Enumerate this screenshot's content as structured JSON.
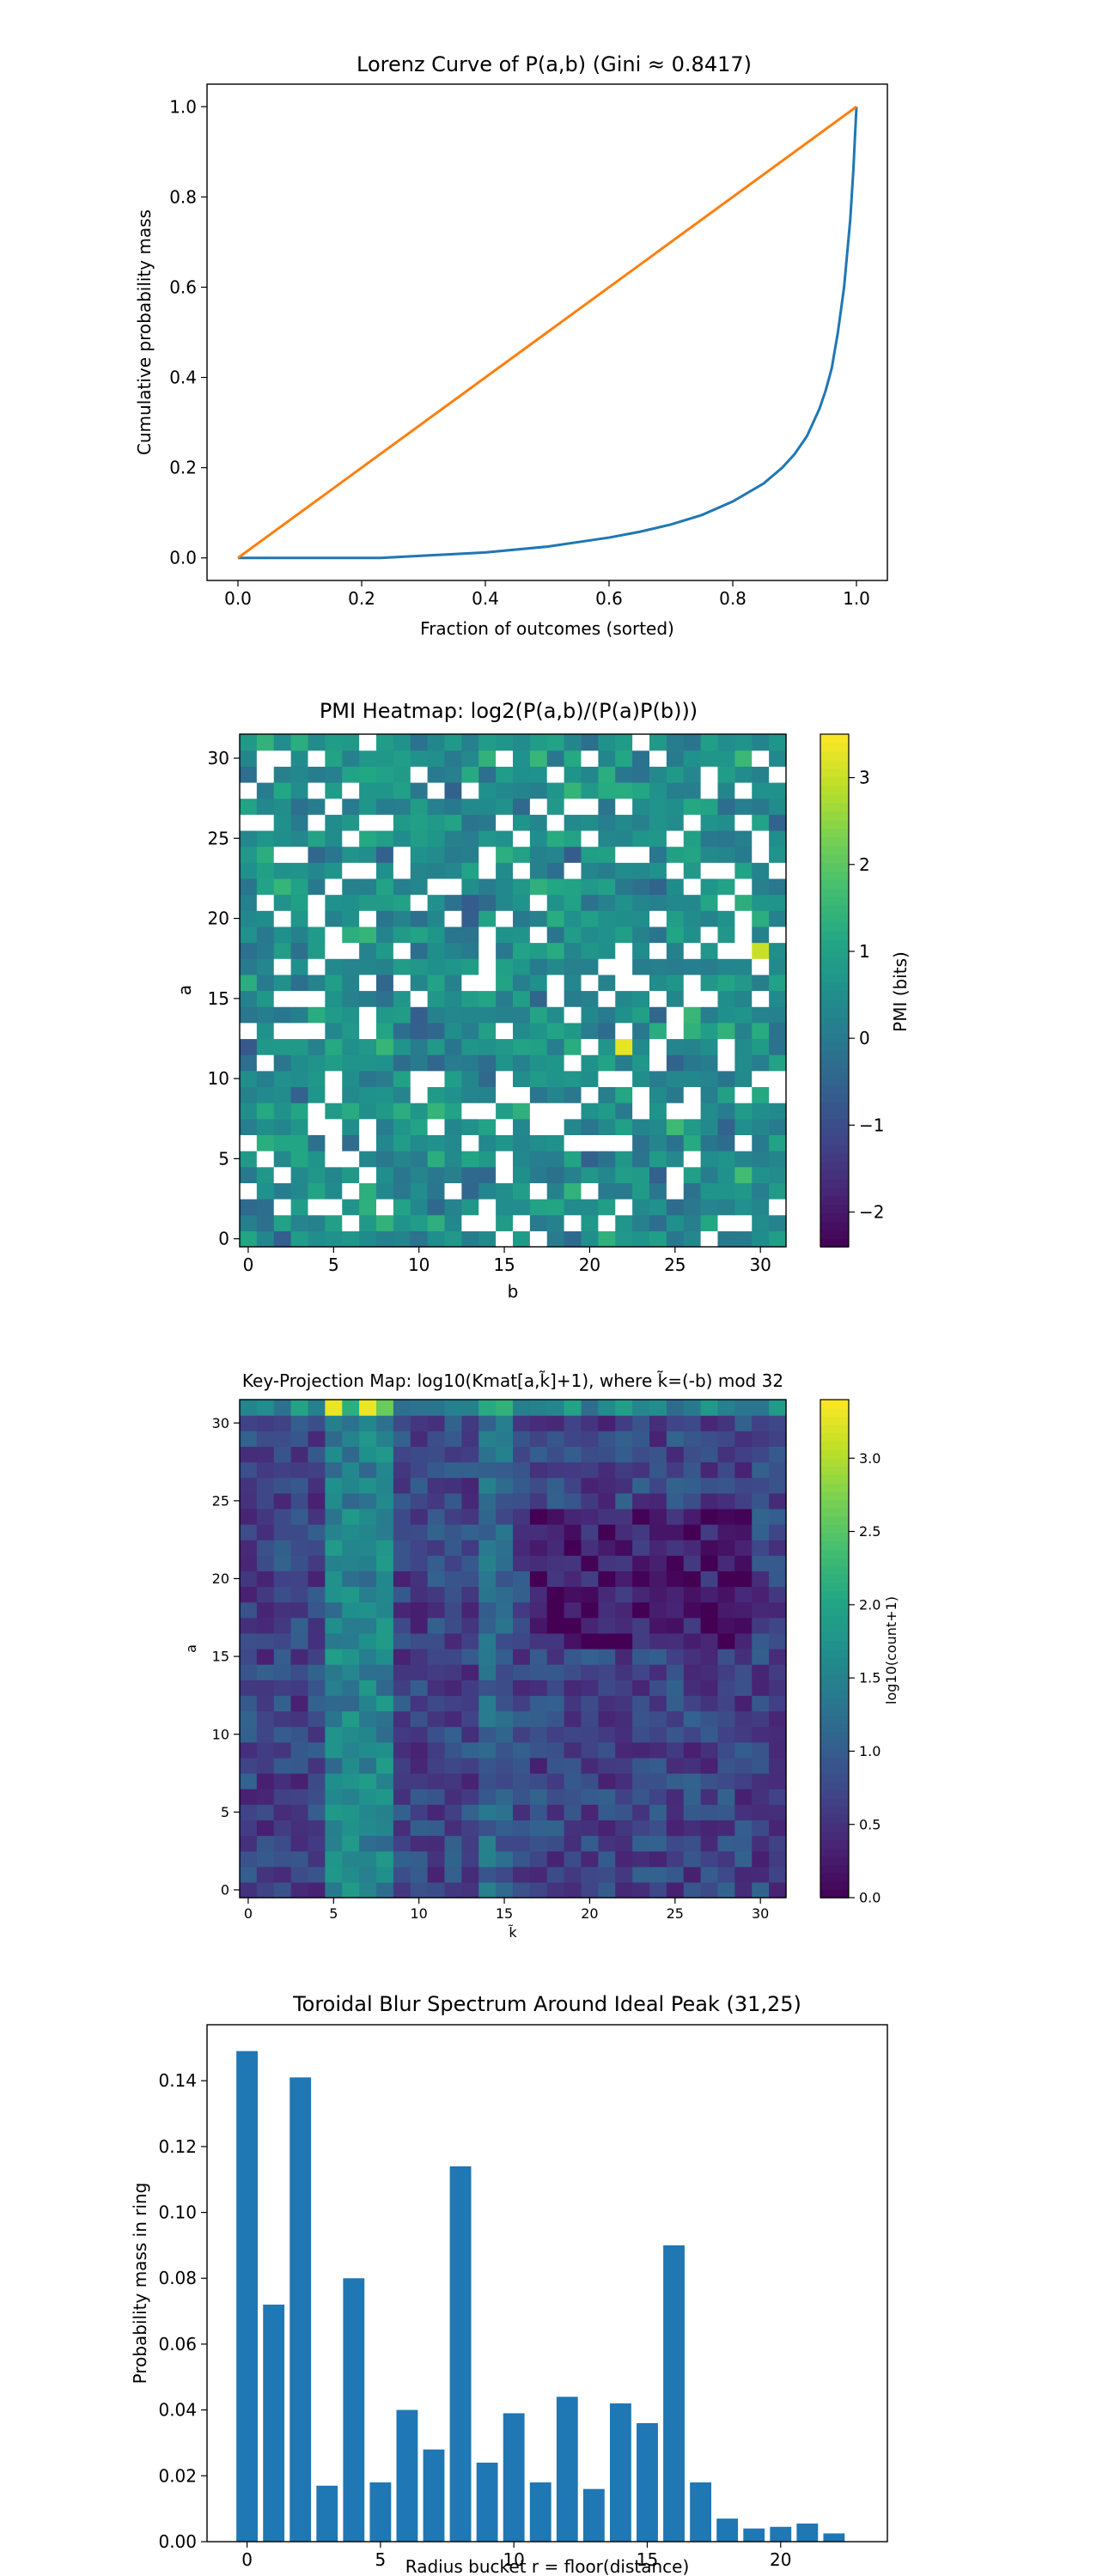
{
  "chart_data": [
    {
      "type": "line",
      "title": "Lorenz Curve of P(a,b) (Gini ≈ 0.8417)",
      "xlabel": "Fraction of outcomes (sorted)",
      "ylabel": "Cumulative probability mass",
      "xlim": [
        -0.05,
        1.05
      ],
      "ylim": [
        -0.05,
        1.05
      ],
      "xticks": [
        0.0,
        0.2,
        0.4,
        0.6,
        0.8,
        1.0
      ],
      "yticks": [
        0.0,
        0.2,
        0.4,
        0.6,
        0.8,
        1.0
      ],
      "tick_labels": [
        "0.0",
        "0.2",
        "0.4",
        "0.6",
        "0.8",
        "1.0"
      ],
      "grid": false,
      "series": [
        {
          "color": "#1f77b4",
          "x": [
            0.0,
            0.23,
            0.3,
            0.4,
            0.5,
            0.6,
            0.65,
            0.7,
            0.75,
            0.8,
            0.85,
            0.88,
            0.9,
            0.92,
            0.94,
            0.95,
            0.96,
            0.97,
            0.98,
            0.99,
            0.995,
            1.0
          ],
          "y": [
            0.0,
            0.0,
            0.005,
            0.012,
            0.025,
            0.045,
            0.058,
            0.074,
            0.095,
            0.125,
            0.165,
            0.2,
            0.23,
            0.27,
            0.33,
            0.37,
            0.42,
            0.5,
            0.6,
            0.75,
            0.86,
            1.0
          ]
        },
        {
          "color": "#ff7f0e",
          "x": [
            0.0,
            1.0
          ],
          "y": [
            0.0,
            1.0
          ]
        }
      ]
    },
    {
      "type": "heatmap",
      "title": "PMI Heatmap: log2(P(a,b)/(P(a)P(b)))",
      "xlabel": "b",
      "ylabel": "a",
      "xticks": [
        0,
        5,
        10,
        15,
        20,
        25,
        30
      ],
      "yticks": [
        0,
        5,
        10,
        15,
        20,
        25,
        30
      ],
      "grid_size": 32,
      "colorscale": "viridis",
      "colorbar_label": "PMI (bits)",
      "colorbar_range": [
        -2.4,
        3.5
      ],
      "colorbar_ticks": [
        -2,
        -1,
        0,
        1,
        2,
        3
      ],
      "colorbar_tick_labels": [
        "−2",
        "−1",
        "0",
        "1",
        "2",
        "3"
      ],
      "missing_cells_shown_as": "white",
      "seed": 7
    },
    {
      "type": "heatmap",
      "title": "Key-Projection Map: log10(Kmat[a,k̃]+1), where k̃=(-b) mod 32",
      "xlabel": "k̃",
      "ylabel": "a",
      "xticks": [
        0,
        5,
        10,
        15,
        20,
        25,
        30
      ],
      "yticks": [
        0,
        5,
        10,
        15,
        20,
        25,
        30
      ],
      "grid_size": 32,
      "colorscale": "viridis",
      "colorbar_label": "log10(count+1)",
      "colorbar_range": [
        0.0,
        3.4
      ],
      "colorbar_ticks": [
        0.0,
        0.5,
        1.0,
        1.5,
        2.0,
        2.5,
        3.0
      ],
      "colorbar_tick_labels": [
        "0.0",
        "0.5",
        "1.0",
        "1.5",
        "2.0",
        "2.5",
        "3.0"
      ],
      "seed": 13
    },
    {
      "type": "bar",
      "title": "Toroidal Blur Spectrum Around Ideal Peak (31,25)",
      "xlabel": "Radius bucket r = floor(distance)",
      "ylabel": "Probability mass in ring",
      "categories": [
        0,
        1,
        2,
        3,
        4,
        5,
        6,
        7,
        8,
        9,
        10,
        11,
        12,
        13,
        14,
        15,
        16,
        17,
        18,
        19,
        20,
        21,
        22
      ],
      "values": [
        0.149,
        0.072,
        0.141,
        0.017,
        0.08,
        0.018,
        0.04,
        0.028,
        0.114,
        0.024,
        0.039,
        0.018,
        0.044,
        0.016,
        0.042,
        0.036,
        0.09,
        0.018,
        0.007,
        0.004,
        0.0045,
        0.0055,
        0.0025
      ],
      "xlim": [
        -1.5,
        24
      ],
      "ylim": [
        0,
        0.157
      ],
      "xticks": [
        0,
        5,
        10,
        15,
        20
      ],
      "yticks": [
        0.0,
        0.02,
        0.04,
        0.06,
        0.08,
        0.1,
        0.12,
        0.14
      ],
      "ytick_labels": [
        "0.00",
        "0.02",
        "0.04",
        "0.06",
        "0.08",
        "0.10",
        "0.12",
        "0.14"
      ],
      "color": "#1f77b4",
      "grid": false
    }
  ]
}
